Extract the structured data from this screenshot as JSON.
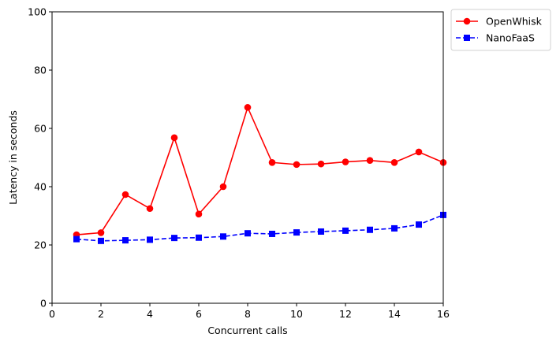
{
  "chart_data": {
    "type": "line",
    "title": "",
    "xlabel": "Concurrent calls",
    "ylabel": "Latency in seconds",
    "xlim": [
      0,
      16
    ],
    "ylim": [
      0,
      100
    ],
    "xticks": [
      0,
      2,
      4,
      6,
      8,
      10,
      12,
      14,
      16
    ],
    "yticks": [
      0,
      20,
      40,
      60,
      80,
      100
    ],
    "x": [
      1,
      2,
      3,
      4,
      5,
      6,
      7,
      8,
      9,
      10,
      11,
      12,
      13,
      14,
      15,
      16
    ],
    "grid": false,
    "legend_position": "outside-top-right",
    "series": [
      {
        "name": "OpenWhisk",
        "color": "#ff0000",
        "marker": "circle",
        "line_style": "solid",
        "values": [
          23.5,
          24.2,
          37.3,
          32.5,
          56.8,
          30.6,
          40.0,
          67.2,
          48.3,
          47.6,
          47.8,
          48.5,
          49.0,
          48.3,
          51.9,
          48.3
        ]
      },
      {
        "name": "NanoFaaS",
        "color": "#0000ff",
        "marker": "square",
        "line_style": "dashed",
        "values": [
          22.0,
          21.4,
          21.6,
          21.8,
          22.4,
          22.5,
          22.9,
          24.0,
          23.8,
          24.3,
          24.6,
          24.9,
          25.2,
          25.7,
          27.0,
          30.3
        ]
      }
    ]
  }
}
